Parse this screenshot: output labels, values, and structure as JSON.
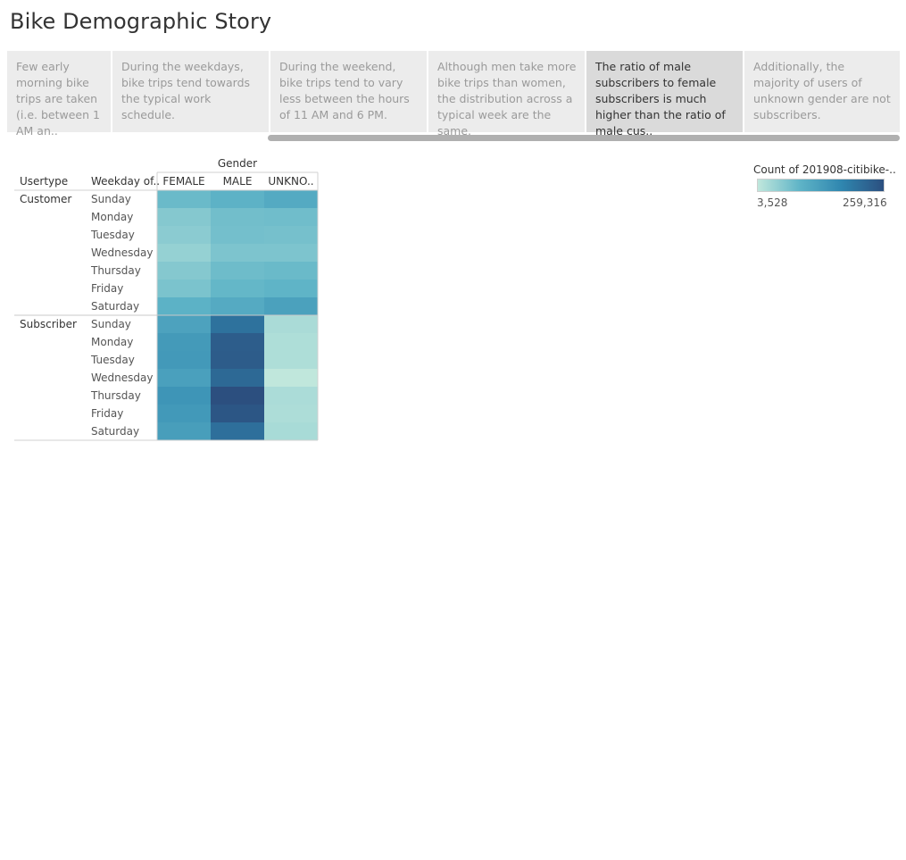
{
  "story": {
    "title": "Bike Demographic Story"
  },
  "navigator": {
    "points": [
      {
        "text": "Few early morning bike trips are taken (i.e. between 1 AM an..",
        "active": false
      },
      {
        "text": "During the weekdays, bike trips tend towards the typical work schedule.",
        "active": false
      },
      {
        "text": "During the weekend, bike trips tend to vary less between the hours of 11 AM and 6 PM.",
        "active": false
      },
      {
        "text": "Although men take more bike trips than women, the distribution across a typical week are the same.",
        "active": false
      },
      {
        "text": "The ratio of male subscribers to female subscribers is much higher than the ratio of male cus..",
        "active": true
      },
      {
        "text": "Additionally, the majority of users of unknown gender are not subscribers.",
        "active": false
      }
    ]
  },
  "legend": {
    "title": "Count of 201908-citibike-..",
    "min_label": "3,528",
    "max_label": "259,316",
    "min": 3528,
    "max": 259316,
    "colors": [
      "#c0e7dc",
      "#5fb4c7",
      "#2f86af",
      "#2c4f7f"
    ]
  },
  "chart_data": {
    "type": "heatmap",
    "column_header": "Gender",
    "row_headers": [
      "Usertype",
      "Weekday of.."
    ],
    "columns": [
      "FEMALE",
      "MALE",
      "UNKNO.."
    ],
    "groups": [
      {
        "name": "Customer",
        "rows": [
          {
            "label": "Sunday",
            "values": [
              26000,
              34000,
              46000
            ]
          },
          {
            "label": "Monday",
            "values": [
              14000,
              22000,
              23000
            ]
          },
          {
            "label": "Tuesday",
            "values": [
              12000,
              21000,
              20000
            ]
          },
          {
            "label": "Wednesday",
            "values": [
              9000,
              17000,
              17000
            ]
          },
          {
            "label": "Thursday",
            "values": [
              14000,
              24000,
              26000
            ]
          },
          {
            "label": "Friday",
            "values": [
              18000,
              29000,
              32000
            ]
          },
          {
            "label": "Saturday",
            "values": [
              35000,
              45000,
              60000
            ]
          }
        ]
      },
      {
        "name": "Subscriber",
        "rows": [
          {
            "label": "Sunday",
            "values": [
              58000,
              163000,
              5000
            ]
          },
          {
            "label": "Monday",
            "values": [
              73000,
              218000,
              4500
            ]
          },
          {
            "label": "Tuesday",
            "values": [
              75000,
              222000,
              4500
            ]
          },
          {
            "label": "Wednesday",
            "values": [
              62000,
              186000,
              3528
            ]
          },
          {
            "label": "Thursday",
            "values": [
              84000,
              259316,
              4800
            ]
          },
          {
            "label": "Friday",
            "values": [
              76000,
              238000,
              4600
            ]
          },
          {
            "label": "Saturday",
            "values": [
              66000,
              170000,
              5200
            ]
          }
        ]
      }
    ]
  }
}
